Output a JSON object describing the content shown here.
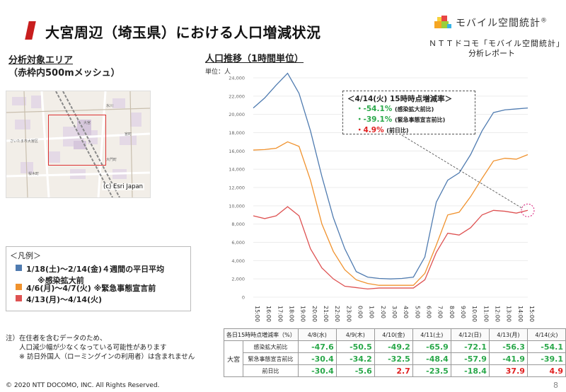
{
  "header": {
    "title": "大宮周辺（埼玉県）における人口増減状況",
    "logo_text": "モバイル空間統計",
    "logo_mark": "®",
    "subtitle_1": "ＮＴＴドコモ「モバイル空間統計」",
    "subtitle_2": "分析レポート"
  },
  "area": {
    "heading": "分析対象エリア",
    "subheading": "（赤枠内500mメッシュ）",
    "map_credit": "(c) Esri Japan",
    "map_labels": [
      "さいたま市大宮区",
      "大宮",
      "氷川",
      "宮町",
      "大門町",
      "桜木町"
    ]
  },
  "legend": {
    "title": "＜凡例＞",
    "items": [
      {
        "label": "1/18(土)～2/14(金)４週間の平日平均",
        "sub": "※感染拡大前",
        "color": "#4f7bb0"
      },
      {
        "label": "4/6(月)～4/7(火) ※緊急事態宣言前",
        "sub": "",
        "color": "#f0922e"
      },
      {
        "label": "4/13(月)～4/14(火)",
        "sub": "",
        "color": "#de5252"
      }
    ]
  },
  "notes": {
    "lines": [
      "注）在住者を含むデータのため、",
      "　　人口減少幅が少なくなっている可能性があります",
      "　　※ 訪日外国人（ローミングインの利用者）は含まれません"
    ]
  },
  "footer": {
    "copyright": "© 2020 NTT DOCOMO, INC. All Rights Reserved.",
    "page": "8"
  },
  "chart_section": {
    "heading": "人口推移（1時間単位）",
    "unit": "単位：人"
  },
  "callout": {
    "title": "＜4/14(火) 15時時点増減率＞",
    "rows": [
      {
        "value": "・-54.1%",
        "label": "(感染拡大前比)",
        "color": "#2aa84a"
      },
      {
        "value": "・-39.1%",
        "label": "(緊急事態宣言前比)",
        "color": "#2aa84a"
      },
      {
        "value": "・4.9%",
        "label": "(前日比)",
        "color": "#e02020"
      }
    ]
  },
  "chart_data": {
    "type": "line",
    "categories": [
      "15:00",
      "16:00",
      "17:00",
      "18:00",
      "19:00",
      "20:00",
      "21:00",
      "22:00",
      "23:00",
      "0:00",
      "1:00",
      "2:00",
      "3:00",
      "4:00",
      "5:00",
      "6:00",
      "7:00",
      "8:00",
      "9:00",
      "10:00",
      "11:00",
      "12:00",
      "13:00",
      "14:00",
      "15:00"
    ],
    "ylim": [
      0,
      24000
    ],
    "yticks": [
      "0",
      "2,000",
      "4,000",
      "6,000",
      "8,000",
      "10,000",
      "12,000",
      "14,000",
      "16,000",
      "18,000",
      "20,000",
      "22,000",
      "24,000"
    ],
    "ylabel": "単位：人",
    "series": [
      {
        "name": "1/18(土)～2/14(金)４週間の平日平均",
        "color": "#4f7bb0",
        "values": [
          20700,
          21800,
          23200,
          24500,
          22300,
          18200,
          13200,
          8700,
          5300,
          2800,
          2200,
          2050,
          2000,
          2050,
          2200,
          4400,
          10400,
          12800,
          13600,
          15600,
          18200,
          20200,
          20500,
          20600,
          20700
        ]
      },
      {
        "name": "4/6(月)～4/7(火)",
        "color": "#f0922e",
        "values": [
          16100,
          16150,
          16300,
          17000,
          16500,
          12800,
          8000,
          5000,
          3000,
          1900,
          1500,
          1300,
          1300,
          1300,
          1300,
          2600,
          5700,
          9000,
          9300,
          11000,
          13000,
          14900,
          15200,
          15100,
          15600
        ]
      },
      {
        "name": "4/13(月)～4/14(火)",
        "color": "#de5252",
        "values": [
          8900,
          8600,
          8900,
          9900,
          8900,
          5300,
          3200,
          2000,
          1200,
          1050,
          900,
          1000,
          1000,
          1000,
          1000,
          1900,
          4900,
          7000,
          6800,
          7600,
          9000,
          9500,
          9400,
          9200,
          9500
        ]
      }
    ]
  },
  "table": {
    "title": "各日15時時点増減率（%）",
    "columns": [
      "4/8(水)",
      "4/9(木)",
      "4/10(金)",
      "4/11(土)",
      "4/12(日)",
      "4/13(月)",
      "4/14(火)"
    ],
    "region": "大宮",
    "rows": [
      {
        "label": "感染拡大前比",
        "values": [
          "-47.6",
          "-50.5",
          "-49.2",
          "-65.9",
          "-72.1",
          "-56.3",
          "-54.1"
        ],
        "colors": [
          "#2aa84a",
          "#2aa84a",
          "#2aa84a",
          "#2aa84a",
          "#2aa84a",
          "#2aa84a",
          "#2aa84a"
        ]
      },
      {
        "label": "緊急事態宣言前比",
        "values": [
          "-30.4",
          "-34.2",
          "-32.5",
          "-48.4",
          "-57.9",
          "-41.9",
          "-39.1"
        ],
        "colors": [
          "#2aa84a",
          "#2aa84a",
          "#2aa84a",
          "#2aa84a",
          "#2aa84a",
          "#2aa84a",
          "#2aa84a"
        ]
      },
      {
        "label": "前日比",
        "values": [
          "-30.4",
          "-5.6",
          "2.7",
          "-23.5",
          "-18.4",
          "37.9",
          "4.9"
        ],
        "colors": [
          "#2aa84a",
          "#2aa84a",
          "#e02020",
          "#2aa84a",
          "#2aa84a",
          "#e02020",
          "#e02020"
        ]
      }
    ]
  }
}
